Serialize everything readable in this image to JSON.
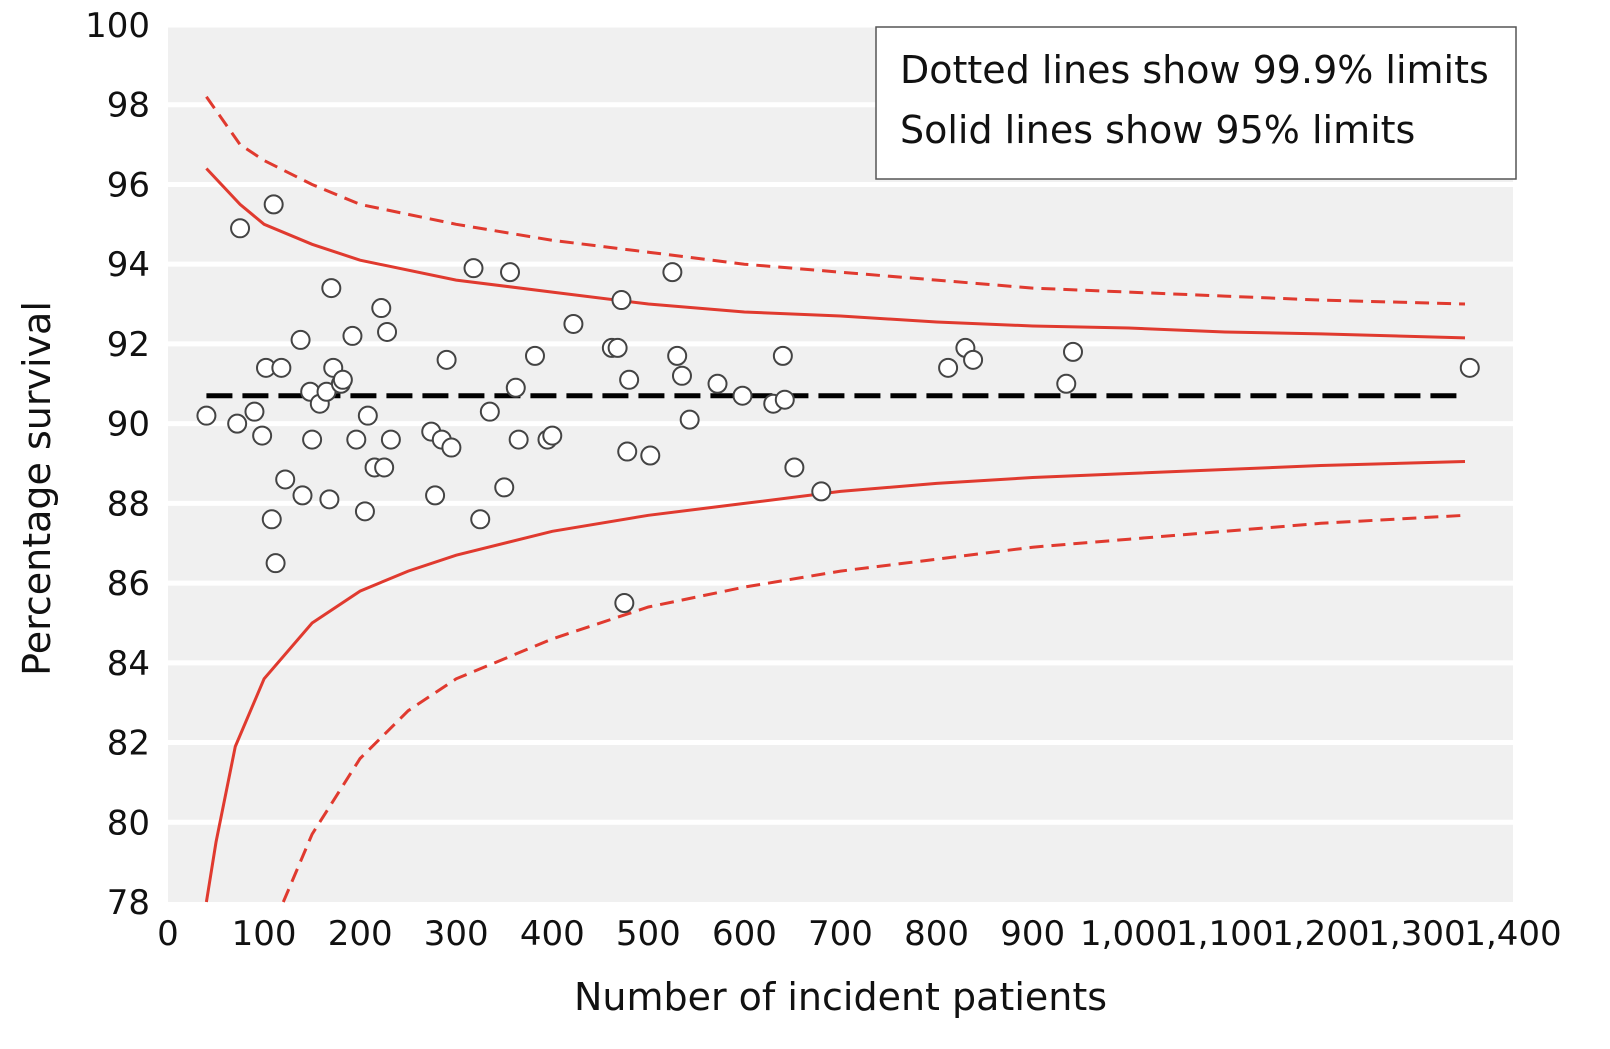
{
  "chart_data": {
    "type": "scatter",
    "xlabel": "Number of incident patients",
    "ylabel": "Percentage survival",
    "xlim": [
      0,
      1400
    ],
    "ylim": [
      78,
      100
    ],
    "x_ticks": [
      "0",
      "100",
      "200",
      "300",
      "400",
      "500",
      "600",
      "700",
      "800",
      "900",
      "1,000",
      "1,100",
      "1,200",
      "1,300",
      "1,400"
    ],
    "y_ticks": [
      "78",
      "80",
      "82",
      "84",
      "86",
      "88",
      "90",
      "92",
      "94",
      "96",
      "98",
      "100"
    ],
    "grid": "horizontal",
    "legend": {
      "position": "top-right",
      "lines": [
        "Dotted lines show 99.9% limits",
        "Solid lines show 95% limits"
      ]
    },
    "mean_line": {
      "y": 90.7,
      "x_range": [
        40,
        1350
      ],
      "color": "#000000",
      "style": "dashed"
    },
    "limits": {
      "upper_999": {
        "color": "#e03a2f",
        "style": "dashed",
        "points": [
          [
            40,
            98.2
          ],
          [
            75,
            97.0
          ],
          [
            100,
            96.6
          ],
          [
            150,
            96.0
          ],
          [
            200,
            95.5
          ],
          [
            300,
            95.0
          ],
          [
            400,
            94.6
          ],
          [
            500,
            94.3
          ],
          [
            600,
            94.0
          ],
          [
            700,
            93.8
          ],
          [
            800,
            93.6
          ],
          [
            900,
            93.4
          ],
          [
            1000,
            93.3
          ],
          [
            1100,
            93.2
          ],
          [
            1200,
            93.1
          ],
          [
            1350,
            93.0
          ]
        ]
      },
      "upper_95": {
        "color": "#e03a2f",
        "style": "solid",
        "points": [
          [
            40,
            96.4
          ],
          [
            75,
            95.5
          ],
          [
            100,
            95.0
          ],
          [
            150,
            94.5
          ],
          [
            200,
            94.1
          ],
          [
            300,
            93.6
          ],
          [
            400,
            93.3
          ],
          [
            500,
            93.0
          ],
          [
            600,
            92.8
          ],
          [
            700,
            92.7
          ],
          [
            800,
            92.55
          ],
          [
            900,
            92.45
          ],
          [
            1000,
            92.4
          ],
          [
            1100,
            92.3
          ],
          [
            1200,
            92.25
          ],
          [
            1350,
            92.15
          ]
        ]
      },
      "lower_95": {
        "color": "#e03a2f",
        "style": "solid",
        "points": [
          [
            40,
            77.5
          ],
          [
            50,
            79.5
          ],
          [
            70,
            81.9
          ],
          [
            100,
            83.6
          ],
          [
            150,
            85.0
          ],
          [
            200,
            85.8
          ],
          [
            250,
            86.3
          ],
          [
            300,
            86.7
          ],
          [
            400,
            87.3
          ],
          [
            500,
            87.7
          ],
          [
            600,
            88.0
          ],
          [
            700,
            88.3
          ],
          [
            800,
            88.5
          ],
          [
            900,
            88.65
          ],
          [
            1000,
            88.75
          ],
          [
            1100,
            88.85
          ],
          [
            1200,
            88.95
          ],
          [
            1350,
            89.05
          ]
        ]
      },
      "lower_999": {
        "color": "#e03a2f",
        "style": "dashed",
        "points": [
          [
            120,
            77.5
          ],
          [
            150,
            79.7
          ],
          [
            200,
            81.6
          ],
          [
            250,
            82.8
          ],
          [
            300,
            83.6
          ],
          [
            400,
            84.6
          ],
          [
            500,
            85.4
          ],
          [
            600,
            85.9
          ],
          [
            700,
            86.3
          ],
          [
            800,
            86.6
          ],
          [
            900,
            86.9
          ],
          [
            1000,
            87.1
          ],
          [
            1100,
            87.3
          ],
          [
            1200,
            87.5
          ],
          [
            1350,
            87.7
          ]
        ]
      }
    },
    "points": {
      "x": [
        40,
        72,
        75,
        90,
        98,
        102,
        108,
        110,
        112,
        118,
        122,
        138,
        140,
        148,
        150,
        158,
        165,
        168,
        170,
        172,
        180,
        182,
        192,
        196,
        205,
        208,
        215,
        222,
        225,
        228,
        232,
        274,
        278,
        285,
        290,
        295,
        318,
        325,
        335,
        350,
        356,
        362,
        365,
        382,
        395,
        400,
        422,
        462,
        468,
        472,
        475,
        478,
        480,
        502,
        525,
        530,
        535,
        543,
        572,
        598,
        630,
        640,
        642,
        652,
        680,
        812,
        830,
        838,
        935,
        942,
        1355
      ],
      "y": [
        90.2,
        90.0,
        94.9,
        90.3,
        89.7,
        91.4,
        87.6,
        95.5,
        86.5,
        91.4,
        88.6,
        92.1,
        88.2,
        90.8,
        89.6,
        90.5,
        90.8,
        88.1,
        93.4,
        91.4,
        91.0,
        91.1,
        92.2,
        89.6,
        87.8,
        90.2,
        88.9,
        92.9,
        88.9,
        92.3,
        89.6,
        89.8,
        88.2,
        89.6,
        91.6,
        89.4,
        93.9,
        87.6,
        90.3,
        88.4,
        93.8,
        90.9,
        89.6,
        91.7,
        89.6,
        89.7,
        92.5,
        91.9,
        91.9,
        93.1,
        85.5,
        89.3,
        91.1,
        89.2,
        93.8,
        91.7,
        91.2,
        90.1,
        91.0,
        90.7,
        90.5,
        91.7,
        90.6,
        88.9,
        88.3,
        91.4,
        91.9,
        91.6,
        91.0,
        91.8,
        91.4
      ]
    }
  }
}
